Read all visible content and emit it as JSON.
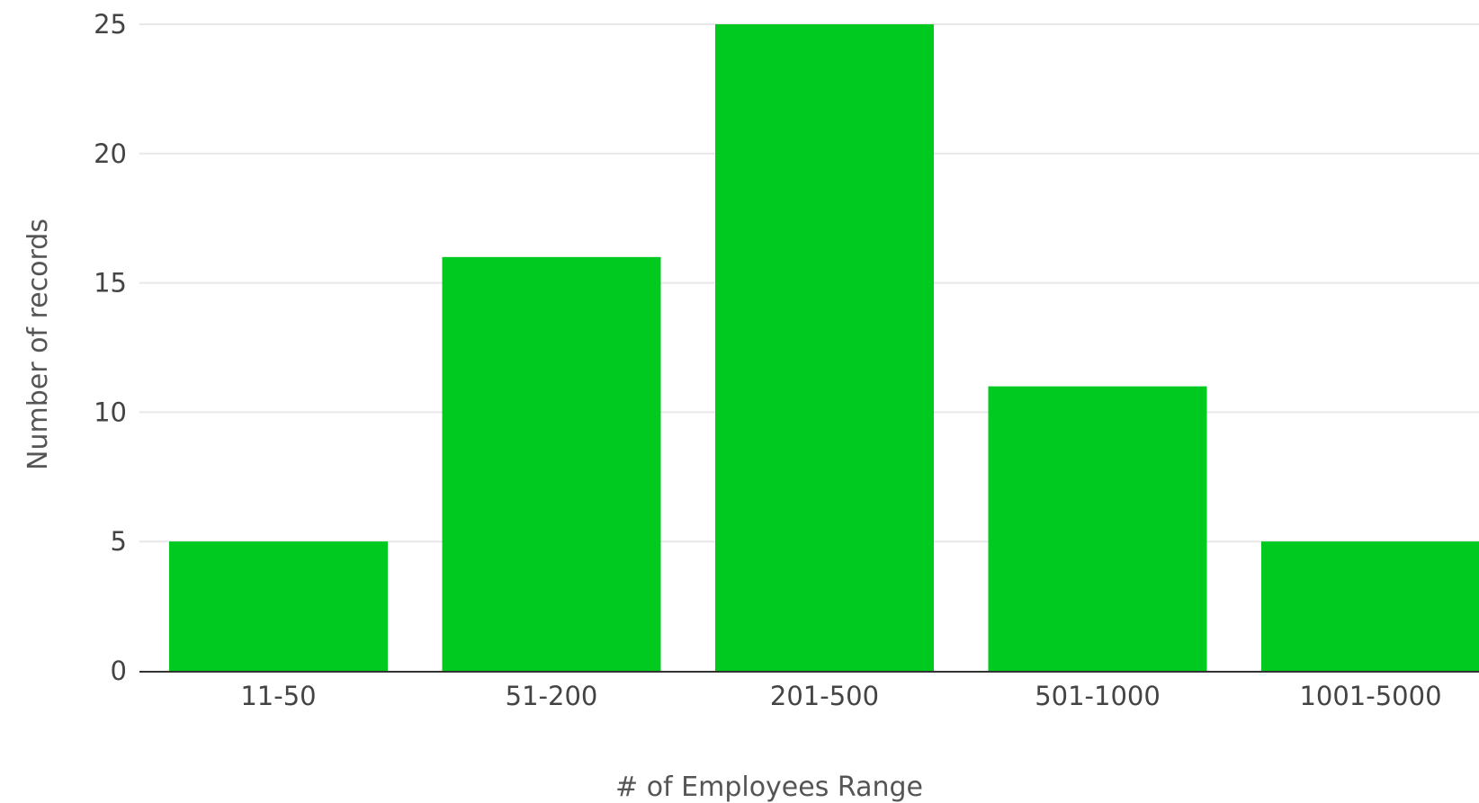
{
  "chart_data": {
    "type": "bar",
    "categories": [
      "11-50",
      "51-200",
      "201-500",
      "501-1000",
      "1001-5000"
    ],
    "values": [
      5,
      16,
      25,
      11,
      5
    ],
    "xlabel": "# of Employees Range",
    "ylabel": "Number of records",
    "ylim": [
      0,
      25
    ],
    "yticks": [
      0,
      5,
      10,
      15,
      20,
      25
    ],
    "grid": true,
    "bar_color": "#00c91f",
    "grid_color": "#e8e8e8",
    "axis_color": "#333333"
  }
}
